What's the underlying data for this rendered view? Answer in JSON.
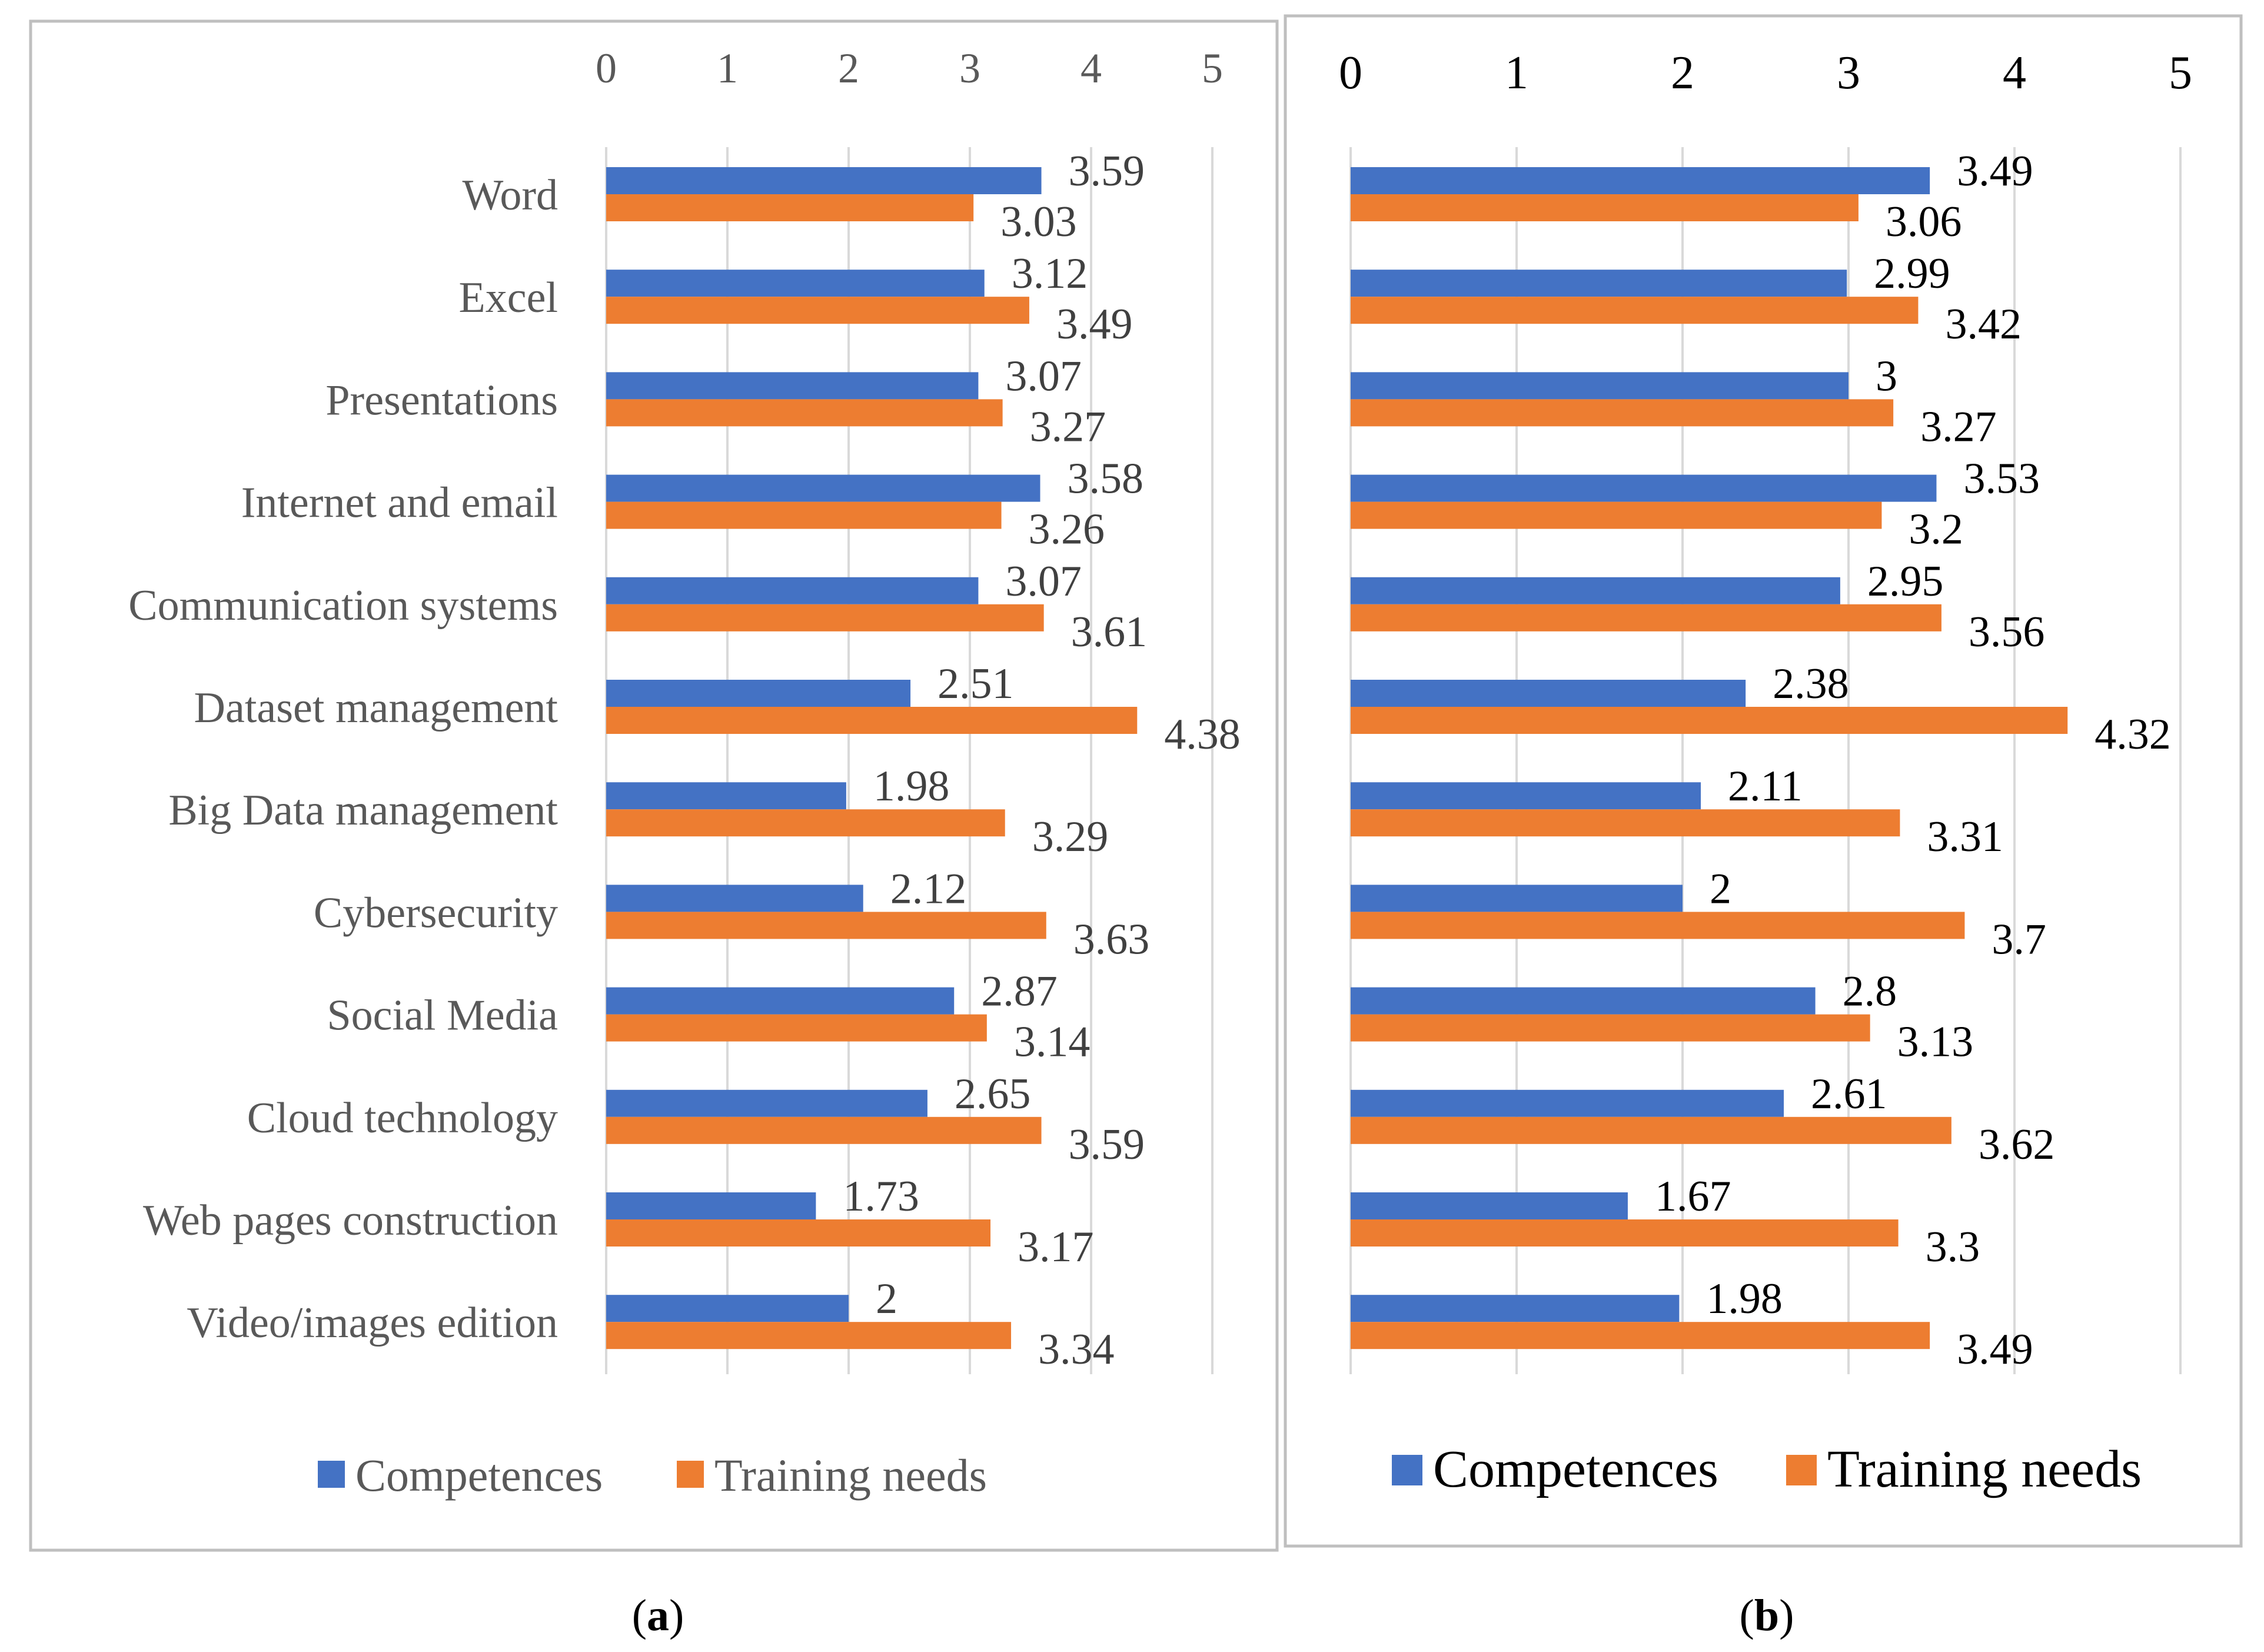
{
  "colors": {
    "competences": "#4472C4",
    "training_needs": "#ED7D31",
    "grid": "#D9D9D9",
    "frame": "#BFBFBF"
  },
  "chart_data": [
    {
      "id": "a",
      "type": "bar",
      "orientation": "horizontal",
      "caption_letter": "a",
      "xlim": [
        0,
        5
      ],
      "ticks": [
        "0",
        "1",
        "2",
        "3",
        "4",
        "5"
      ],
      "grid": true,
      "legend": "bottom",
      "categories": [
        "Word",
        "Excel",
        "Presentations",
        "Internet and email",
        "Communication systems",
        "Dataset management",
        "Big Data management",
        "Cybersecurity",
        "Social Media",
        "Cloud technology",
        "Web pages construction",
        "Video/images edition"
      ],
      "series": [
        {
          "name": "Competences",
          "values": [
            3.59,
            3.12,
            3.07,
            3.58,
            3.07,
            2.51,
            1.98,
            2.12,
            2.87,
            2.65,
            1.73,
            2
          ],
          "labels": [
            "3.59",
            "3.12",
            "3.07",
            "3.58",
            "3.07",
            "2.51",
            "1.98",
            "2.12",
            "2.87",
            "2.65",
            "1.73",
            "2"
          ]
        },
        {
          "name": "Training needs",
          "values": [
            3.03,
            3.49,
            3.27,
            3.26,
            3.61,
            4.38,
            3.29,
            3.63,
            3.14,
            3.59,
            3.17,
            3.34
          ],
          "labels": [
            "3.03",
            "3.49",
            "3.27",
            "3.26",
            "3.61",
            "4.38",
            "3.29",
            "3.63",
            "3.14",
            "3.59",
            "3.17",
            "3.34"
          ]
        }
      ]
    },
    {
      "id": "b",
      "type": "bar",
      "orientation": "horizontal",
      "caption_letter": "b",
      "xlim": [
        0,
        5
      ],
      "ticks": [
        "0",
        "1",
        "2",
        "3",
        "4",
        "5"
      ],
      "grid": true,
      "legend": "bottom",
      "categories": [
        "Word",
        "Excel",
        "Presentations",
        "Internet and email",
        "Communication systems",
        "Dataset management",
        "Big Data management",
        "Cybersecurity",
        "Social Media",
        "Cloud technology",
        "Web pages construction",
        "Video/images edition"
      ],
      "series": [
        {
          "name": "Competences",
          "values": [
            3.49,
            2.99,
            3,
            3.53,
            2.95,
            2.38,
            2.11,
            2,
            2.8,
            2.61,
            1.67,
            1.98
          ],
          "labels": [
            "3.49",
            "2.99",
            "3",
            "3.53",
            "2.95",
            "2.38",
            "2.11",
            "2",
            "2.8",
            "2.61",
            "1.67",
            "1.98"
          ]
        },
        {
          "name": "Training needs",
          "values": [
            3.06,
            3.42,
            3.27,
            3.2,
            3.56,
            4.32,
            3.31,
            3.7,
            3.13,
            3.62,
            3.3,
            3.49
          ],
          "labels": [
            "3.06",
            "3.42",
            "3.27",
            "3.2",
            "3.56",
            "4.32",
            "3.31",
            "3.7",
            "3.13",
            "3.62",
            "3.3",
            "3.49"
          ]
        }
      ]
    }
  ]
}
